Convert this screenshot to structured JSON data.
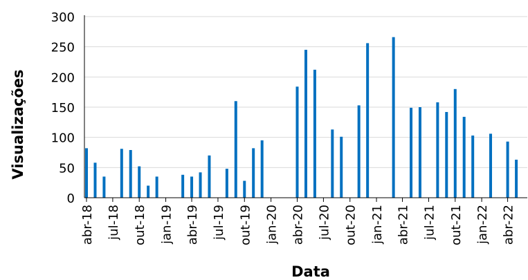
{
  "chart_data": {
    "type": "bar",
    "xlabel": "Data",
    "ylabel": "Visualizações",
    "ylim": [
      0,
      300
    ],
    "yticks": [
      0,
      50,
      100,
      150,
      200,
      250,
      300
    ],
    "xrange": [
      "2018-04-01",
      "2022-06-01"
    ],
    "xticks": [
      "abr-18",
      "jul-18",
      "out-18",
      "jan-19",
      "abr-19",
      "jul-19",
      "out-19",
      "jan-20",
      "abr-20",
      "jul-20",
      "out-20",
      "jan-21",
      "abr-21",
      "jul-21",
      "out-21",
      "jan-22",
      "abr-22"
    ],
    "xtick_dates": [
      "2018-04-01",
      "2018-07-01",
      "2018-10-01",
      "2019-01-01",
      "2019-04-01",
      "2019-07-01",
      "2019-10-01",
      "2020-01-01",
      "2020-04-01",
      "2020-07-01",
      "2020-10-01",
      "2021-01-01",
      "2021-04-01",
      "2021-07-01",
      "2021-10-01",
      "2022-01-01",
      "2022-04-01"
    ],
    "bar_color": "#0070c0",
    "grid": true,
    "points": [
      {
        "date": "2018-04-01",
        "value": 82
      },
      {
        "date": "2018-05-01",
        "value": 58
      },
      {
        "date": "2018-06-01",
        "value": 35
      },
      {
        "date": "2018-08-01",
        "value": 81
      },
      {
        "date": "2018-09-01",
        "value": 79
      },
      {
        "date": "2018-10-01",
        "value": 52
      },
      {
        "date": "2018-11-01",
        "value": 20
      },
      {
        "date": "2018-12-01",
        "value": 35
      },
      {
        "date": "2019-03-01",
        "value": 38
      },
      {
        "date": "2019-04-01",
        "value": 35
      },
      {
        "date": "2019-05-01",
        "value": 42
      },
      {
        "date": "2019-06-01",
        "value": 70
      },
      {
        "date": "2019-08-01",
        "value": 48
      },
      {
        "date": "2019-09-01",
        "value": 160
      },
      {
        "date": "2019-10-01",
        "value": 28
      },
      {
        "date": "2019-11-01",
        "value": 82
      },
      {
        "date": "2019-12-01",
        "value": 95
      },
      {
        "date": "2020-04-01",
        "value": 184
      },
      {
        "date": "2020-05-01",
        "value": 245
      },
      {
        "date": "2020-06-01",
        "value": 212
      },
      {
        "date": "2020-08-01",
        "value": 113
      },
      {
        "date": "2020-09-01",
        "value": 101
      },
      {
        "date": "2020-11-01",
        "value": 153
      },
      {
        "date": "2020-12-01",
        "value": 256
      },
      {
        "date": "2021-03-01",
        "value": 266
      },
      {
        "date": "2021-05-01",
        "value": 149
      },
      {
        "date": "2021-06-01",
        "value": 150
      },
      {
        "date": "2021-08-01",
        "value": 158
      },
      {
        "date": "2021-09-01",
        "value": 142
      },
      {
        "date": "2021-10-01",
        "value": 180
      },
      {
        "date": "2021-11-01",
        "value": 134
      },
      {
        "date": "2021-12-01",
        "value": 103
      },
      {
        "date": "2022-02-01",
        "value": 106
      },
      {
        "date": "2022-04-01",
        "value": 93
      },
      {
        "date": "2022-05-01",
        "value": 63
      }
    ]
  }
}
